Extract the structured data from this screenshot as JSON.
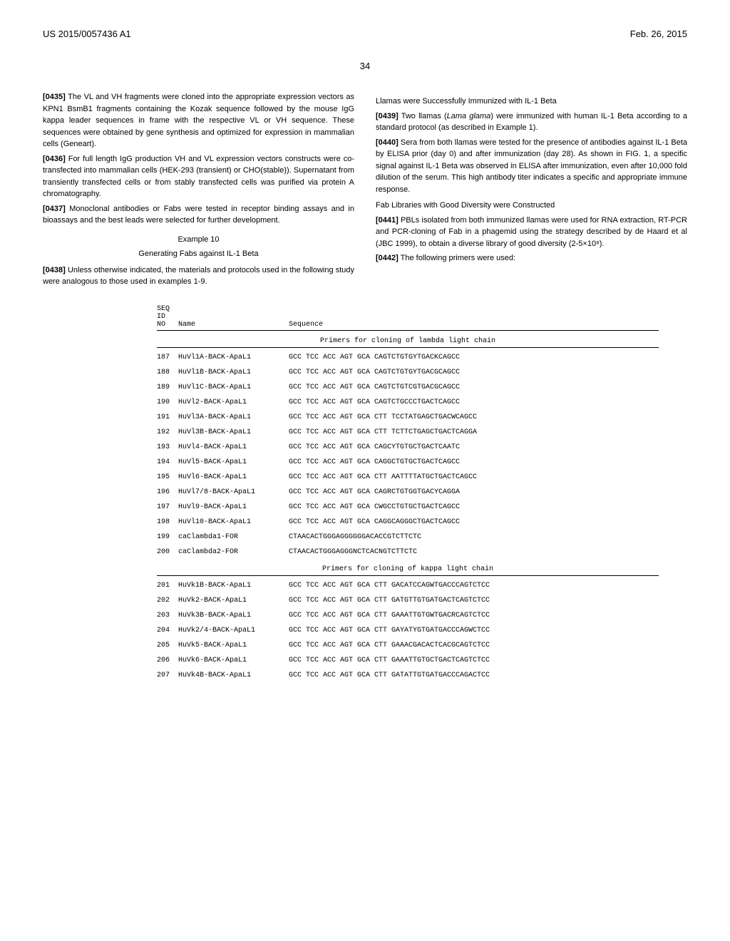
{
  "header": {
    "left": "US 2015/0057436 A1",
    "right": "Feb. 26, 2015"
  },
  "page_number": "34",
  "left_col": {
    "paragraphs": [
      {
        "num": "[0435]",
        "text": "The VL and VH fragments were cloned into the appropriate expression vectors as KPN1 BsmB1 fragments containing the Kozak sequence followed by the mouse IgG kappa leader sequences in frame with the respective VL or VH sequence. These sequences were obtained by gene synthesis and optimized for expression in mammalian cells (Geneart)."
      },
      {
        "num": "[0436]",
        "text": "For full length IgG production VH and VL expression vectors constructs were co-transfected into mammalian cells (HEK-293 (transient) or CHO(stable)). Supernatant from transiently transfected cells or from stably transfected cells was purified via protein A chromatography."
      },
      {
        "num": "[0437]",
        "text": "Monoclonal antibodies or Fabs were tested in receptor binding assays and in bioassays and the best leads were selected for further development."
      }
    ],
    "example_title": "Example 10",
    "example_subtitle": "Generating Fabs against IL-1 Beta",
    "paragraphs2": [
      {
        "num": "[0438]",
        "text": "Unless otherwise indicated, the materials and protocols used in the following study were analogous to those used in examples 1-9."
      }
    ]
  },
  "right_col": {
    "heading1": "Llamas were Successfully Immunized with IL-1 Beta",
    "paragraphs": [
      {
        "num": "[0439]",
        "text_before": "Two llamas (",
        "text_italic": "Lama glama",
        "text_after": ") were immunized with human IL-1 Beta according to a standard protocol (as described in Example 1)."
      },
      {
        "num": "[0440]",
        "text": "Sera from both llamas were tested for the presence of antibodies against IL-1 Beta by ELISA prior (day 0) and after immunization (day 28). As shown in FIG. 1, a specific signal against IL-1 Beta was observed in ELISA after immunization, even after 10,000 fold dilution of the serum. This high antibody titer indicates a specific and appropriate immune response."
      }
    ],
    "heading2": "Fab Libraries with Good Diversity were Constructed",
    "paragraphs2": [
      {
        "num": "[0441]",
        "text": "PBLs isolated from both immunized llamas were used for RNA extraction, RT-PCR and PCR-cloning of Fab in a phagemid using the strategy described by de Haard et al (JBC 1999), to obtain a diverse library of good diversity (2-5×10⁸)."
      },
      {
        "num": "[0442]",
        "text": "The following primers were used:"
      }
    ]
  },
  "table": {
    "header_line1": "SEQ",
    "header_line2": "ID",
    "header_cols": [
      "NO",
      "Name",
      "Sequence"
    ],
    "subheader1": "Primers for cloning of lambda light chain",
    "rows1": [
      {
        "seqid": "187",
        "name": "HuVl1A-BACK-ApaL1",
        "seq": "GCC TCC ACC AGT GCA CAGTCTGTGYTGACKCAGCC"
      },
      {
        "seqid": "188",
        "name": "HuVl1B-BACK-ApaL1",
        "seq": "GCC TCC ACC AGT GCA CAGTCTGTGYTGACGCAGCC"
      },
      {
        "seqid": "189",
        "name": "HuVl1C-BACK-ApaL1",
        "seq": "GCC TCC ACC AGT GCA CAGTCTGTCGTGACGCAGCC"
      },
      {
        "seqid": "190",
        "name": "HuVl2-BACK-ApaL1",
        "seq": "GCC TCC ACC AGT GCA CAGTCTGCCCTGACTCAGCC"
      },
      {
        "seqid": "191",
        "name": "HuVl3A-BACK-ApaL1",
        "seq": "GCC TCC ACC AGT GCA CTT TCCTATGAGCTGACWCAGCC"
      },
      {
        "seqid": "192",
        "name": "HuVl3B-BACK-ApaL1",
        "seq": "GCC TCC ACC AGT GCA CTT TCTTCTGAGCTGACTCAGGA"
      },
      {
        "seqid": "193",
        "name": "HuVl4-BACK-ApaL1",
        "seq": "GCC TCC ACC AGT GCA CAGCYTGTGCTGACTCAATC"
      },
      {
        "seqid": "194",
        "name": "HuVl5-BACK-ApaL1",
        "seq": "GCC TCC ACC AGT GCA CAGGCTGTGCTGACTCAGCC"
      },
      {
        "seqid": "195",
        "name": "HuVl6-BACK-ApaL1",
        "seq": "GCC TCC ACC AGT GCA CTT AATTTTATGCTGACTCAGCC"
      },
      {
        "seqid": "196",
        "name": "HuVl7/8-BACK-ApaL1",
        "seq": "GCC TCC ACC AGT GCA CAGRCTGTGGTGACYCAGGA"
      },
      {
        "seqid": "197",
        "name": "HuVl9-BACK-ApaL1",
        "seq": "GCC TCC ACC AGT GCA CWGCCTGTGCTGACTCAGCC"
      },
      {
        "seqid": "198",
        "name": "HuVl10-BACK-ApaL1",
        "seq": "GCC TCC ACC AGT GCA CAGGCAGGGCTGACTCAGCC"
      },
      {
        "seqid": "199",
        "name": "caClambda1-FOR",
        "seq": "CTAACACTGGGAGGGGGGACACCGTCTTCTC"
      },
      {
        "seqid": "200",
        "name": "caClambda2-FOR",
        "seq": "CTAACACTGGGAGGGNCTCACNGTCTTCTC"
      }
    ],
    "subheader2": "Primers for cloning of kappa light chain",
    "rows2": [
      {
        "seqid": "201",
        "name": "HuVk1B-BACK-ApaL1",
        "seq": "GCC TCC ACC AGT GCA CTT GACATCCAGWTGACCCAGTCTCC"
      },
      {
        "seqid": "202",
        "name": "HuVk2-BACK-ApaL1",
        "seq": "GCC TCC ACC AGT GCA CTT GATGTTGTGATGACTCAGTCTCC"
      },
      {
        "seqid": "203",
        "name": "HuVk3B-BACK-ApaL1",
        "seq": "GCC TCC ACC AGT GCA CTT GAAATTGTGWTGACRCAGTCTCC"
      },
      {
        "seqid": "204",
        "name": "HuVk2/4-BACK-ApaL1",
        "seq": "GCC TCC ACC AGT GCA CTT GAYATYGTGATGACCCAGWCTCC"
      },
      {
        "seqid": "205",
        "name": "HuVk5-BACK-ApaL1",
        "seq": "GCC TCC ACC AGT GCA CTT GAAACGACACTCACGCAGTCTCC"
      },
      {
        "seqid": "206",
        "name": "HuVk6-BACK-ApaL1",
        "seq": "GCC TCC ACC AGT GCA CTT GAAATTGTGCTGACTCAGTCTCC"
      },
      {
        "seqid": "207",
        "name": "HuVk4B-BACK-ApaL1",
        "seq": "GCC TCC ACC AGT GCA CTT GATATTGTGATGACCCAGACTCC"
      }
    ]
  }
}
